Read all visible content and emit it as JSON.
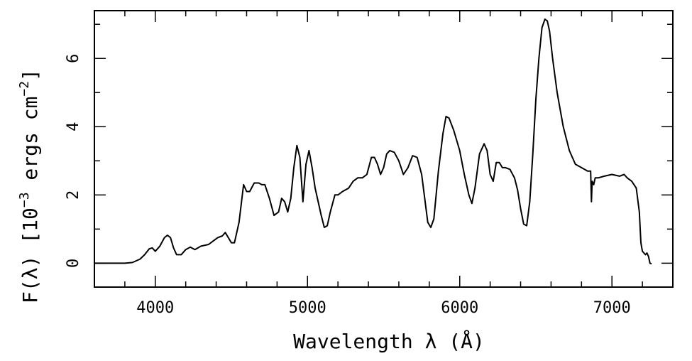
{
  "chart_data": {
    "type": "line",
    "title": "",
    "xlabel": "Wavelength λ (Å)",
    "ylabel_prefix": "F(λ) [10",
    "ylabel_exp1": "−3",
    "ylabel_mid": " ergs cm",
    "ylabel_exp2": "−2",
    "ylabel_suffix": "]",
    "xlim": [
      3600,
      7400
    ],
    "ylim": [
      -0.7,
      7.4
    ],
    "xticks_major": [
      4000,
      5000,
      6000,
      7000
    ],
    "xtick_labels": [
      "4000",
      "5000",
      "6000",
      "7000"
    ],
    "xticks_minor_step": 200,
    "yticks_major": [
      0,
      2,
      4,
      6
    ],
    "ytick_labels": [
      "0",
      "2",
      "4",
      "6"
    ],
    "yticks_minor_step": 1,
    "grid": false,
    "line_color": "#000000",
    "series": [
      {
        "x": [
          3600,
          3700,
          3800,
          3850,
          3900,
          3930,
          3960,
          3980,
          4000,
          4030,
          4060,
          4080,
          4100,
          4120,
          4140,
          4170,
          4200,
          4230,
          4260,
          4300,
          4350,
          4380,
          4410,
          4440,
          4460,
          4480,
          4500,
          4520,
          4550,
          4580,
          4600,
          4620,
          4650,
          4680,
          4700,
          4720,
          4750,
          4780,
          4810,
          4830,
          4850,
          4870,
          4890,
          4910,
          4930,
          4950,
          4970,
          4990,
          5010,
          5030,
          5050,
          5070,
          5090,
          5110,
          5130,
          5150,
          5180,
          5200,
          5230,
          5270,
          5300,
          5330,
          5360,
          5390,
          5420,
          5440,
          5460,
          5480,
          5500,
          5520,
          5540,
          5570,
          5600,
          5630,
          5660,
          5690,
          5720,
          5750,
          5770,
          5790,
          5810,
          5830,
          5860,
          5890,
          5910,
          5930,
          5960,
          6000,
          6030,
          6060,
          6080,
          6100,
          6130,
          6160,
          6180,
          6200,
          6220,
          6240,
          6260,
          6280,
          6300,
          6330,
          6360,
          6380,
          6400,
          6420,
          6440,
          6460,
          6480,
          6500,
          6520,
          6540,
          6560,
          6575,
          6590,
          6610,
          6640,
          6680,
          6720,
          6760,
          6800,
          6840,
          6860,
          6865,
          6870,
          6880,
          6890,
          6910,
          6950,
          7000,
          7050,
          7080,
          7100,
          7130,
          7160,
          7180,
          7190,
          7200,
          7210,
          7220,
          7230,
          7240,
          7250,
          7260
        ],
        "y": [
          0.0,
          0.0,
          0.0,
          0.02,
          0.12,
          0.25,
          0.42,
          0.45,
          0.35,
          0.5,
          0.75,
          0.82,
          0.75,
          0.45,
          0.25,
          0.25,
          0.4,
          0.47,
          0.4,
          0.5,
          0.55,
          0.65,
          0.75,
          0.8,
          0.9,
          0.75,
          0.6,
          0.6,
          1.2,
          2.3,
          2.1,
          2.1,
          2.35,
          2.35,
          2.3,
          2.3,
          1.9,
          1.4,
          1.5,
          1.9,
          1.8,
          1.5,
          1.9,
          2.8,
          3.45,
          3.1,
          1.8,
          2.9,
          3.3,
          2.8,
          2.2,
          1.8,
          1.4,
          1.05,
          1.1,
          1.5,
          2.0,
          2.0,
          2.1,
          2.2,
          2.4,
          2.5,
          2.5,
          2.6,
          3.1,
          3.1,
          2.9,
          2.6,
          2.8,
          3.2,
          3.3,
          3.25,
          3.0,
          2.6,
          2.8,
          3.15,
          3.1,
          2.6,
          1.9,
          1.2,
          1.05,
          1.3,
          2.7,
          3.8,
          4.3,
          4.25,
          3.9,
          3.3,
          2.6,
          2.0,
          1.75,
          2.2,
          3.2,
          3.5,
          3.3,
          2.6,
          2.4,
          2.95,
          2.95,
          2.8,
          2.8,
          2.75,
          2.5,
          2.15,
          1.6,
          1.15,
          1.1,
          1.8,
          3.2,
          4.8,
          6.0,
          6.9,
          7.15,
          7.1,
          6.8,
          6.0,
          5.0,
          4.0,
          3.3,
          2.9,
          2.8,
          2.7,
          2.7,
          1.8,
          2.4,
          2.3,
          2.5,
          2.5,
          2.55,
          2.6,
          2.55,
          2.6,
          2.5,
          2.4,
          2.2,
          1.5,
          0.6,
          0.35,
          0.3,
          0.25,
          0.3,
          0.2,
          0.0,
          -0.02
        ]
      }
    ]
  }
}
